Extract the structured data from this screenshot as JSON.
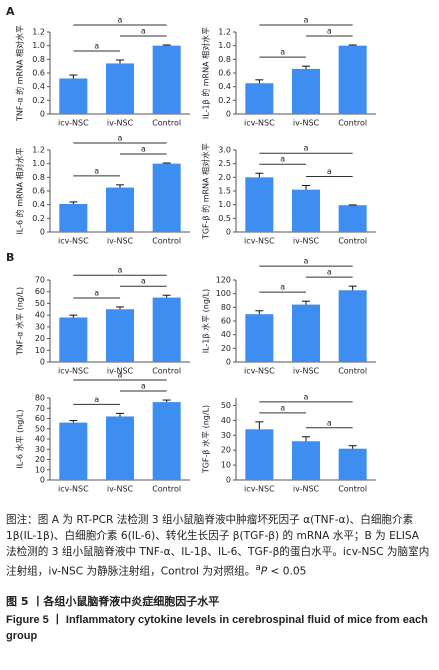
{
  "panel_labels": [
    "A",
    "B"
  ],
  "chart_data": [
    {
      "type": "bar",
      "y_label": "TNF-α 的 mRNA 相对水平",
      "categories": [
        "icv-NSC",
        "iv-NSC",
        "Control"
      ],
      "values": [
        0.52,
        0.74,
        1.0
      ],
      "errors": [
        0.05,
        0.05,
        0.01
      ],
      "color": "#3d8ef0",
      "ylim": [
        0,
        1.2
      ],
      "yticks": [
        0,
        0.2,
        0.4,
        0.6,
        0.8,
        {
          "value": 1,
          "label": "1.0"
        },
        1.2
      ],
      "annotations": [
        "a",
        "a",
        "a"
      ]
    },
    {
      "type": "bar",
      "y_label": "IL-1β 的 mRNA 相对水平",
      "categories": [
        "icv-NSC",
        "iv-NSC",
        "Control"
      ],
      "values": [
        0.45,
        0.66,
        1.0
      ],
      "errors": [
        0.05,
        0.04,
        0.01
      ],
      "color": "#3d8ef0",
      "ylim": [
        0,
        1.2
      ],
      "yticks": [
        0,
        0.2,
        0.4,
        0.6,
        0.8,
        {
          "value": 1,
          "label": "1.0"
        },
        1.2
      ],
      "annotations": [
        "a",
        "a",
        "a"
      ]
    },
    {
      "type": "bar",
      "y_label": "IL-6 的 mRNA 相对水平",
      "categories": [
        "icv-NSC",
        "iv-NSC",
        "Control"
      ],
      "values": [
        0.41,
        0.65,
        1.0
      ],
      "errors": [
        0.03,
        0.04,
        0.01
      ],
      "color": "#3d8ef0",
      "ylim": [
        0,
        1.2
      ],
      "yticks": [
        0,
        0.2,
        0.4,
        0.6,
        0.8,
        {
          "value": 1,
          "label": "1.0"
        },
        1.2
      ],
      "annotations": [
        "a",
        "a",
        "a"
      ]
    },
    {
      "type": "bar",
      "y_label": "TGF-β 的 mRNA 相对水平",
      "categories": [
        "icv-NSC",
        "iv-NSC",
        "Control"
      ],
      "values": [
        2.0,
        1.55,
        0.98
      ],
      "errors": [
        0.15,
        0.15,
        0.01
      ],
      "color": "#3d8ef0",
      "ylim": [
        0,
        3
      ],
      "yticks": [
        0,
        0.5,
        {
          "value": 1,
          "label": "1.0"
        },
        1.5,
        {
          "value": 2,
          "label": "2.0"
        },
        2.5,
        {
          "value": 3,
          "label": "3.0"
        }
      ],
      "annotations": [
        "a",
        "a",
        "a"
      ]
    },
    {
      "type": "bar",
      "y_label": "TNF-α 水平 (ng/L)",
      "categories": [
        "icv-NSC",
        "iv-NSC",
        "Control"
      ],
      "values": [
        38,
        45,
        55
      ],
      "errors": [
        2,
        2,
        2
      ],
      "color": "#3d8ef0",
      "ylim": [
        0,
        70
      ],
      "yticks": [
        0,
        10,
        20,
        30,
        40,
        50,
        60,
        70
      ],
      "annotations": [
        "a",
        "a",
        "a"
      ]
    },
    {
      "type": "bar",
      "y_label": "IL-1β 水平 (ng/L)",
      "categories": [
        "icv-NSC",
        "iv-NSC",
        "Control"
      ],
      "values": [
        70,
        84,
        105
      ],
      "errors": [
        5,
        5,
        6
      ],
      "color": "#3d8ef0",
      "ylim": [
        0,
        120
      ],
      "yticks": [
        0,
        20,
        40,
        60,
        80,
        100,
        120
      ],
      "annotations": [
        "a",
        "a",
        "a"
      ]
    },
    {
      "type": "bar",
      "y_label": "IL-6 水平 (ng/L)",
      "categories": [
        "icv-NSC",
        "iv-NSC",
        "Control"
      ],
      "values": [
        56,
        62,
        76
      ],
      "errors": [
        2,
        3,
        2
      ],
      "color": "#3d8ef0",
      "ylim": [
        0,
        80
      ],
      "yticks": [
        0,
        10,
        20,
        30,
        40,
        50,
        60,
        70,
        80
      ],
      "annotations": [
        "a",
        "a",
        "a"
      ]
    },
    {
      "type": "bar",
      "y_label": "TGF-β 水平 (ng/L)",
      "categories": [
        "icv-NSC",
        "iv-NSC",
        "Control"
      ],
      "values": [
        34,
        26,
        21
      ],
      "errors": [
        5,
        3,
        2
      ],
      "color": "#3d8ef0",
      "ylim": [
        0,
        55
      ],
      "yticks": [
        0,
        10,
        20,
        30,
        40,
        50
      ],
      "annotations": [
        "a",
        "a",
        "a"
      ]
    }
  ],
  "caption": {
    "note": "图注：图 A 为 RT-PCR 法检测 3 组小鼠脑脊液中肿瘤坏死因子 α(TNF-α)、白细胞介素 1β(IL-1β)、白细胞介素 6(IL-6)、转化生长因子 β(TGF-β) 的 mRNA 水平；B 为 ELISA 法检测的 3 组小鼠脑脊液中 TNF-α、IL-1β、IL-6、TGF-β的蛋白水平。icv-NSC 为脑室内注射组，iv-NSC 为静脉注射组，Control 为对照组。",
    "note_sup": "a",
    "note_p": "P",
    "note_tail": " < 0.05",
    "title_cn": "图 5 丨各组小鼠脑脊液中炎症细胞因子水平",
    "title_en": "Figure 5 丨 Inflammatory cytokine levels in cerebrospinal fluid of mice from each group"
  }
}
